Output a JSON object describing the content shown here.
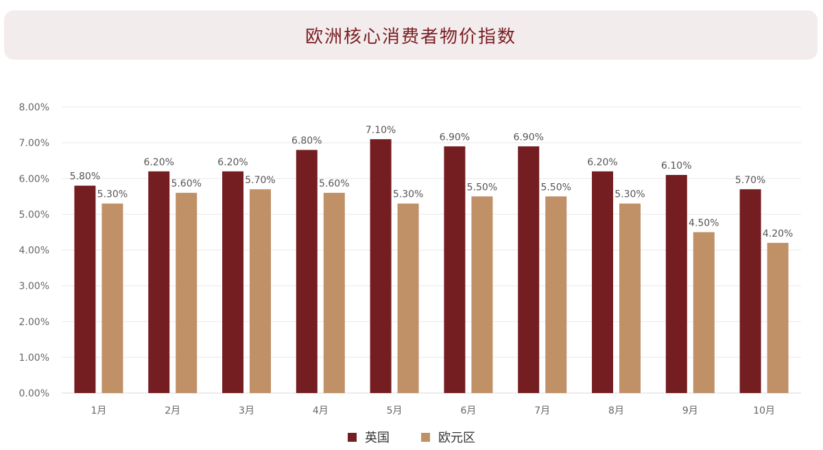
{
  "chart_data": {
    "type": "bar",
    "title": "欧洲核心消费者物价指数",
    "categories": [
      "1月",
      "2月",
      "3月",
      "4月",
      "5月",
      "6月",
      "7月",
      "8月",
      "9月",
      "10月"
    ],
    "series": [
      {
        "name": "英国",
        "color": "#741e22",
        "values": [
          5.8,
          6.2,
          6.2,
          6.8,
          7.1,
          6.9,
          6.9,
          6.2,
          6.1,
          5.7
        ],
        "labels": [
          "5.80%",
          "6.20%",
          "6.20%",
          "6.80%",
          "7.10%",
          "6.90%",
          "6.90%",
          "6.20%",
          "6.10%",
          "5.70%"
        ]
      },
      {
        "name": "欧元区",
        "color": "#c09066",
        "values": [
          5.3,
          5.6,
          5.7,
          5.6,
          5.3,
          5.5,
          5.5,
          5.3,
          4.5,
          4.2
        ],
        "labels": [
          "5.30%",
          "5.60%",
          "5.70%",
          "5.60%",
          "5.30%",
          "5.50%",
          "5.50%",
          "5.30%",
          "4.50%",
          "4.20%"
        ]
      }
    ],
    "ylim": [
      0,
      8
    ],
    "yticks": [
      "0.00%",
      "1.00%",
      "2.00%",
      "3.00%",
      "4.00%",
      "5.00%",
      "6.00%",
      "7.00%",
      "8.00%"
    ],
    "grid": true,
    "legend_position": "bottom-center"
  }
}
